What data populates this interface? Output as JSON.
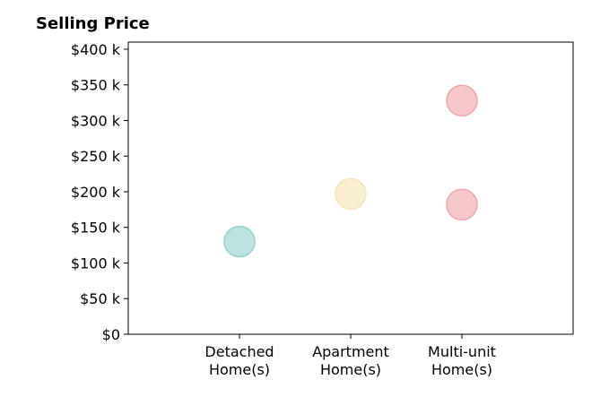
{
  "chart_data": {
    "type": "scatter",
    "title": "Selling Price",
    "xlabel": "",
    "ylabel": "",
    "categories": [
      [
        "Detached",
        "Home(s)"
      ],
      [
        "Apartment",
        "Home(s)"
      ],
      [
        "Multi-unit",
        "Home(s)"
      ]
    ],
    "yticks": [
      0,
      50,
      100,
      150,
      200,
      250,
      300,
      350,
      400
    ],
    "ytick_labels": [
      "$0",
      "$50 k",
      "$100 k",
      "$150 k",
      "$200 k",
      "$250 k",
      "$300 k",
      "$350 k",
      "$400 k"
    ],
    "ylim": [
      0,
      410
    ],
    "grid": false,
    "legend": "none",
    "points": [
      {
        "category": "Detached Home(s)",
        "category_index": 0,
        "value": 130,
        "color": "#8fd0cc"
      },
      {
        "category": "Apartment Home(s)",
        "category_index": 1,
        "value": 197,
        "color": "#f6e3b4"
      },
      {
        "category": "Multi-unit Home(s)",
        "category_index": 2,
        "value": 328,
        "color": "#f2a3a9"
      },
      {
        "category": "Multi-unit Home(s)",
        "category_index": 2,
        "value": 182,
        "color": "#f2a3a9"
      }
    ]
  }
}
